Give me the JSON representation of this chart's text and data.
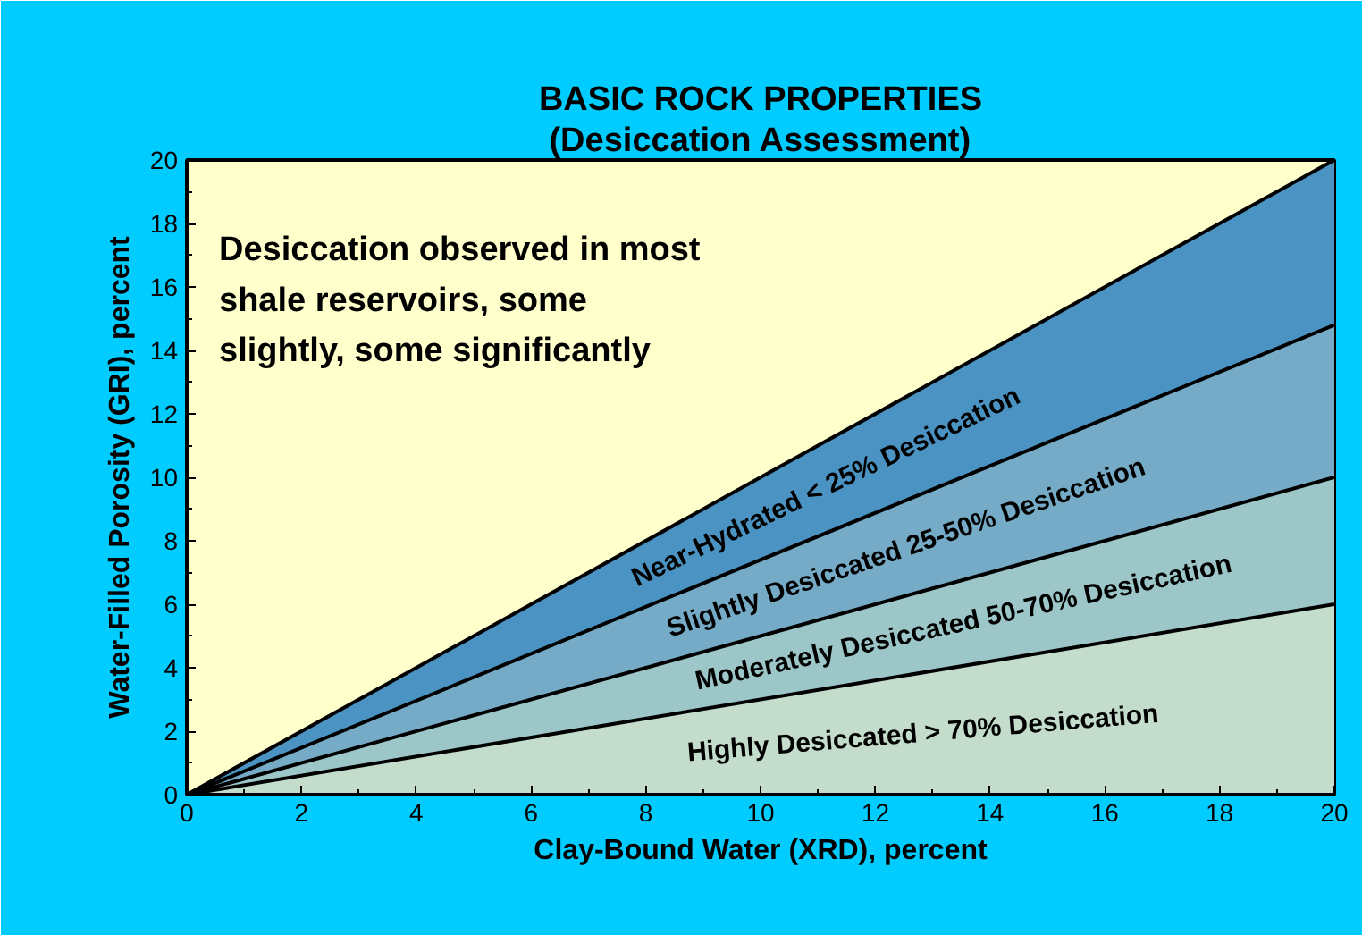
{
  "chart_data": {
    "type": "area",
    "title": "BASIC ROCK PROPERTIES",
    "subtitle": "(Desiccation Assessment)",
    "xlabel": "Clay-Bound Water (XRD), percent",
    "ylabel": "Water-Filled Porosity (GRI), percent",
    "x": [
      0,
      20
    ],
    "series": [
      {
        "color": "#4a93c2",
        "values": [
          0,
          20
        ]
      },
      {
        "color": "#75abc6",
        "values": [
          0,
          14.8
        ]
      },
      {
        "color": "#9dc6c8",
        "values": [
          0,
          10
        ]
      },
      {
        "color": "#c3dccb",
        "values": [
          0,
          6
        ]
      }
    ],
    "xlim": [
      0,
      20
    ],
    "ylim": [
      0,
      20
    ],
    "xticks": [
      0,
      2,
      4,
      6,
      8,
      10,
      12,
      14,
      16,
      18,
      20
    ],
    "yticks": [
      0,
      2,
      4,
      6,
      8,
      10,
      12,
      14,
      16,
      18,
      20
    ],
    "grid": false,
    "annotations": [
      "Desiccation observed in most\nshale reservoirs, some\nslightly, some significantly",
      "Near-Hydrated  < 25% Desiccation",
      "Slightly Desiccated  25-50% Desiccation",
      "Moderately Desiccated  50-70% Desiccation",
      "Highly Desiccated  > 70% Desiccation"
    ]
  }
}
